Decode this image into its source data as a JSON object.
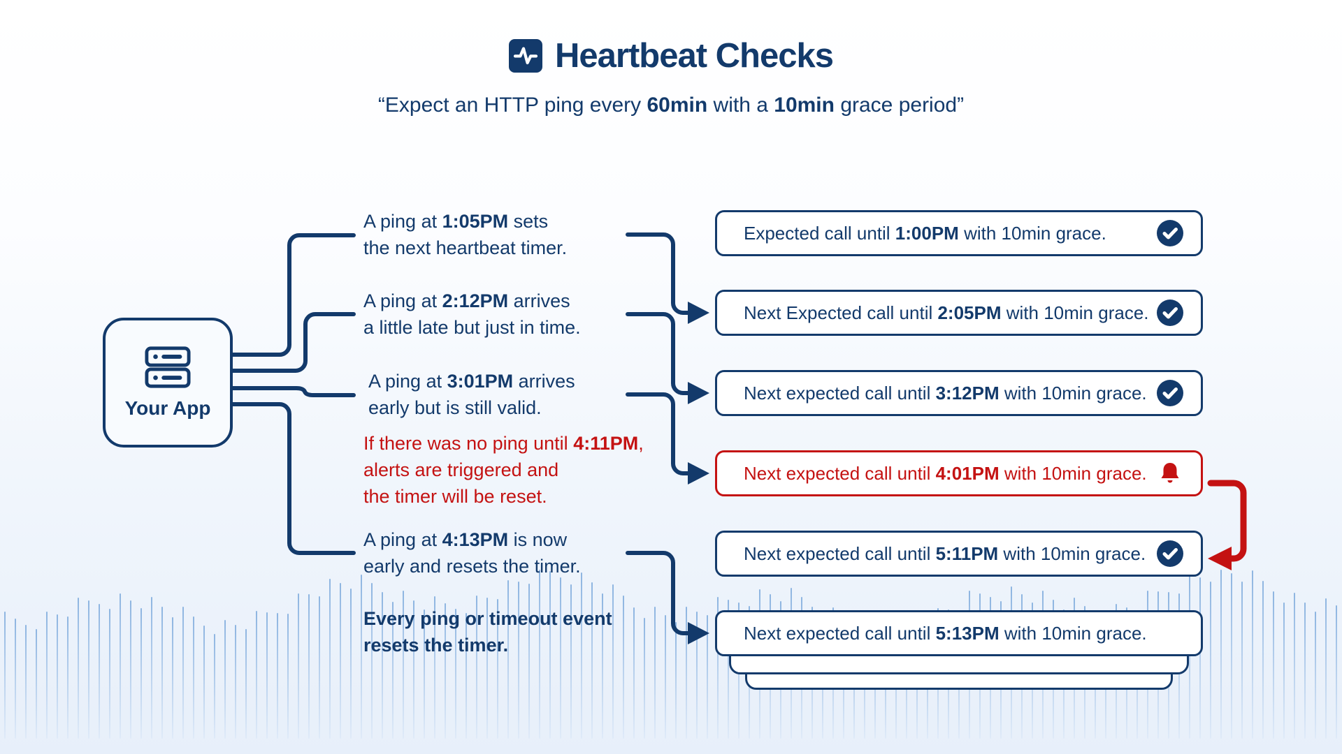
{
  "colors": {
    "navy": "#133a6b",
    "red": "#c41212",
    "waveform": "#7daadc",
    "box_background": "#ffffff",
    "app_box_background": "#f8fbfe"
  },
  "header": {
    "title": "Heartbeat Checks",
    "title_icon": "heartbeat-pulse-icon",
    "subtitle": {
      "pre": "“Expect an HTTP ping every ",
      "bold1": "60min",
      "mid": " with a ",
      "bold2": "10min",
      "post": " grace period”"
    }
  },
  "app": {
    "label": "Your App",
    "icon": "server-icon"
  },
  "notes": [
    {
      "l1pre": "A ping at ",
      "l1bold": "1:05PM",
      "l1post": " sets",
      "l2": "the next heartbeat timer."
    },
    {
      "l1pre": "A ping at ",
      "l1bold": "2:12PM",
      "l1post": " arrives",
      "l2": "a little late but just in time."
    },
    {
      "l1pre": "A ping at ",
      "l1bold": "3:01PM",
      "l1post": " arrives",
      "l2": "early but is still valid."
    },
    {
      "l1pre": "If there was no ping until ",
      "l1bold": "4:11PM",
      "l1post": ",",
      "l2": "alerts are triggered and",
      "l3": "the timer will be reset."
    },
    {
      "l1pre": "A ping at ",
      "l1bold": "4:13PM",
      "l1post": " is now",
      "l2": "early and resets the timer."
    }
  ],
  "caption": {
    "l1": "Every ping or timeout event",
    "l2": "resets the timer."
  },
  "status_boxes": [
    {
      "pre": "Expected call until ",
      "time": "1:00PM",
      "post": " with 10min grace.",
      "icon": "check"
    },
    {
      "pre": "Next Expected call until ",
      "time": "2:05PM",
      "post": " with 10min grace.",
      "icon": "check"
    },
    {
      "pre": "Next expected call until ",
      "time": "3:12PM",
      "post": " with 10min grace.",
      "icon": "check"
    },
    {
      "pre": "Next expected call until ",
      "time": "4:01PM",
      "post": " with 10min grace.",
      "icon": "bell",
      "variant": "alert"
    },
    {
      "pre": "Next expected call until ",
      "time": "5:11PM",
      "post": " with 10min grace.",
      "icon": "check"
    },
    {
      "pre": "Next expected call until ",
      "time": "5:13PM",
      "post": " with 10min grace.",
      "icon": "none"
    }
  ]
}
